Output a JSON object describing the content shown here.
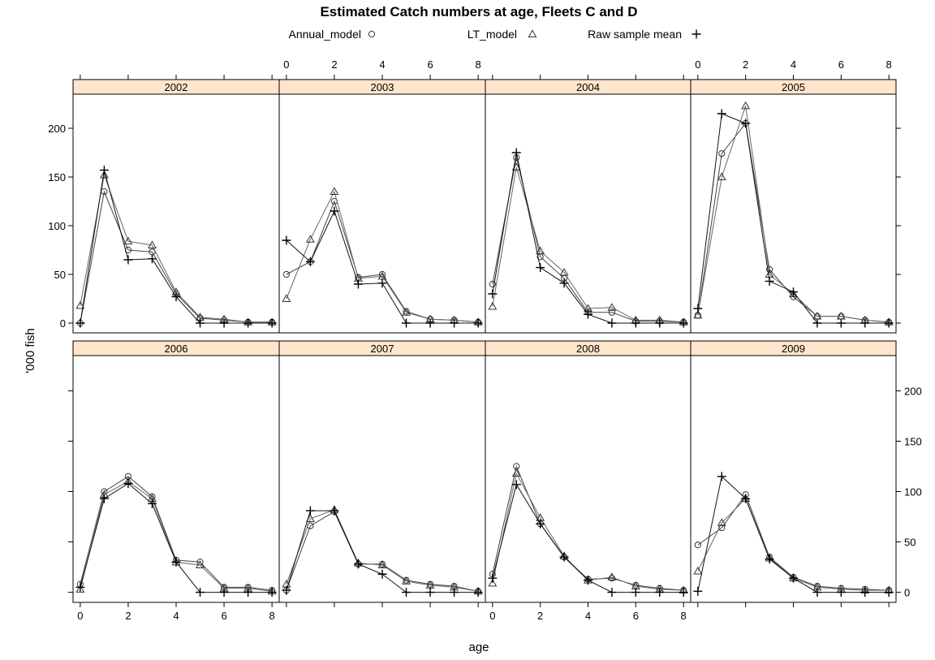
{
  "chart_data": {
    "type": "line",
    "title": "Estimated Catch numbers at age, Fleets C and D",
    "xlabel": "age",
    "ylabel": "'000 fish",
    "xlim": [
      -0.3,
      8.3
    ],
    "ylim": [
      -10,
      235
    ],
    "x_ticks": [
      0,
      2,
      4,
      6,
      8
    ],
    "y_ticks": [
      0,
      50,
      100,
      150,
      200
    ],
    "legend": {
      "placement": "top",
      "entries": [
        {
          "label": "Annual_model",
          "symbol": "○"
        },
        {
          "label": "LT_model",
          "symbol": "△"
        },
        {
          "label": "Raw sample mean",
          "symbol": "+"
        }
      ]
    },
    "strip_color": "#ffe5cc",
    "x": [
      0,
      1,
      2,
      3,
      4,
      5,
      6,
      7,
      8
    ],
    "panels": [
      {
        "label": "2002",
        "series": [
          {
            "name": "Annual_model",
            "values": [
              0,
              135,
              75,
              73,
              30,
              5,
              3,
              1,
              1
            ]
          },
          {
            "name": "LT_model",
            "values": [
              18,
              152,
              84,
              80,
              32,
              6,
              4,
              1,
              1
            ]
          },
          {
            "name": "Raw sample mean",
            "values": [
              0,
              157,
              65,
              66,
              27,
              0,
              0,
              0,
              0
            ]
          }
        ]
      },
      {
        "label": "2003",
        "series": [
          {
            "name": "Annual_model",
            "values": [
              50,
              63,
              125,
              47,
              50,
              12,
              4,
              3,
              1
            ]
          },
          {
            "name": "LT_model",
            "values": [
              25,
              86,
              135,
              46,
              48,
              11,
              4,
              3,
              1
            ]
          },
          {
            "name": "Raw sample mean",
            "values": [
              85,
              63,
              115,
              40,
              41,
              0,
              0,
              0,
              0
            ]
          }
        ]
      },
      {
        "label": "2004",
        "series": [
          {
            "name": "Annual_model",
            "values": [
              40,
              170,
              68,
              46,
              11,
              11,
              2,
              2,
              1
            ]
          },
          {
            "name": "LT_model",
            "values": [
              17,
              160,
              74,
              52,
              15,
              16,
              3,
              3,
              1
            ]
          },
          {
            "name": "Raw sample mean",
            "values": [
              30,
              175,
              57,
              41,
              9,
              0,
              0,
              0,
              0
            ]
          }
        ]
      },
      {
        "label": "2005",
        "series": [
          {
            "name": "Annual_model",
            "values": [
              8,
              174,
              205,
              55,
              27,
              7,
              7,
              3,
              1
            ]
          },
          {
            "name": "LT_model",
            "values": [
              8,
              150,
              223,
              50,
              30,
              7,
              7,
              3,
              1
            ]
          },
          {
            "name": "Raw sample mean",
            "values": [
              15,
              215,
              205,
              43,
              32,
              0,
              0,
              0,
              0
            ]
          }
        ]
      },
      {
        "label": "2006",
        "series": [
          {
            "name": "Annual_model",
            "values": [
              8,
              100,
              115,
              95,
              32,
              30,
              5,
              5,
              2
            ]
          },
          {
            "name": "LT_model",
            "values": [
              3,
              97,
              110,
              93,
              30,
              27,
              4,
              4,
              1
            ]
          },
          {
            "name": "Raw sample mean",
            "values": [
              5,
              93,
              108,
              88,
              30,
              0,
              0,
              0,
              0
            ]
          }
        ]
      },
      {
        "label": "2007",
        "series": [
          {
            "name": "Annual_model",
            "values": [
              2,
              66,
              80,
              28,
              28,
              12,
              8,
              6,
              1
            ]
          },
          {
            "name": "LT_model",
            "values": [
              8,
              73,
              82,
              29,
              27,
              11,
              7,
              5,
              1
            ]
          },
          {
            "name": "Raw sample mean",
            "values": [
              2,
              81,
              81,
              28,
              18,
              0,
              0,
              0,
              0
            ]
          }
        ]
      },
      {
        "label": "2008",
        "series": [
          {
            "name": "Annual_model",
            "values": [
              18,
              125,
              68,
              35,
              13,
              14,
              7,
              4,
              2
            ]
          },
          {
            "name": "LT_model",
            "values": [
              9,
              118,
              74,
              36,
              12,
              15,
              6,
              3,
              2
            ]
          },
          {
            "name": "Raw sample mean",
            "values": [
              14,
              107,
              68,
              35,
              12,
              0,
              0,
              0,
              0
            ]
          }
        ]
      },
      {
        "label": "2009",
        "series": [
          {
            "name": "Annual_model",
            "values": [
              47,
              64,
              97,
              35,
              15,
              6,
              4,
              3,
              2
            ]
          },
          {
            "name": "LT_model",
            "values": [
              21,
              69,
              93,
              34,
              14,
              5,
              3,
              2,
              2
            ]
          },
          {
            "name": "Raw sample mean",
            "values": [
              1,
              115,
              93,
              33,
              14,
              0,
              0,
              0,
              0
            ]
          }
        ]
      }
    ]
  }
}
